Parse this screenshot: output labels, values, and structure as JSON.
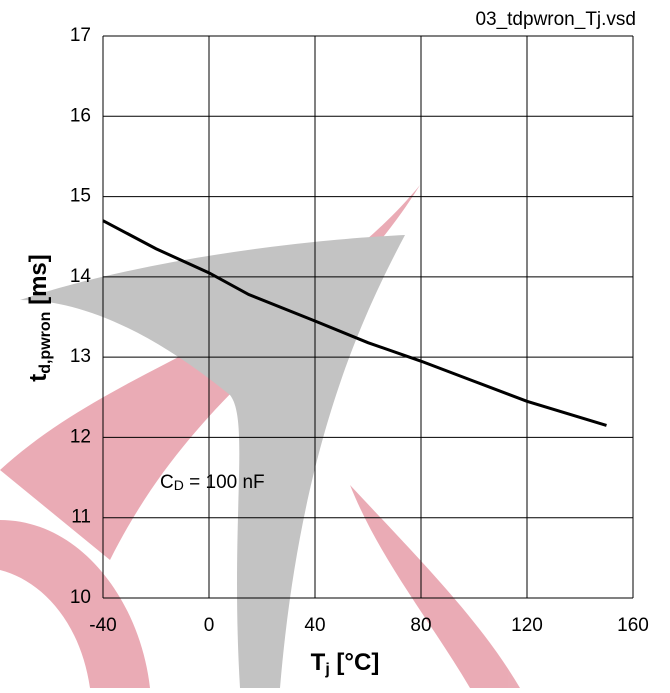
{
  "chart_data": {
    "type": "line",
    "title": "03_tdpwron_Tj.vsd",
    "x_label": {
      "main": "T",
      "sub": "j",
      "rest": " [°C]"
    },
    "y_label": {
      "main": "t",
      "sub": "d,pwron",
      "rest": " [ms]"
    },
    "annotation": {
      "main": "C",
      "sub": "D",
      "rest": " = 100 nF"
    },
    "x": [
      -40,
      -20,
      0,
      15,
      40,
      60,
      80,
      100,
      120,
      150
    ],
    "series": [
      {
        "color": "#000000",
        "values": [
          14.7,
          14.35,
          14.05,
          13.78,
          13.45,
          13.18,
          12.95,
          12.7,
          12.45,
          12.15
        ]
      }
    ],
    "xlim": [
      -40,
      160
    ],
    "xticks": [
      -40,
      0,
      40,
      80,
      120,
      160
    ],
    "ylim": [
      10,
      17
    ],
    "yticks": [
      10,
      11,
      12,
      13,
      14,
      15,
      16,
      17
    ],
    "grid": true
  }
}
